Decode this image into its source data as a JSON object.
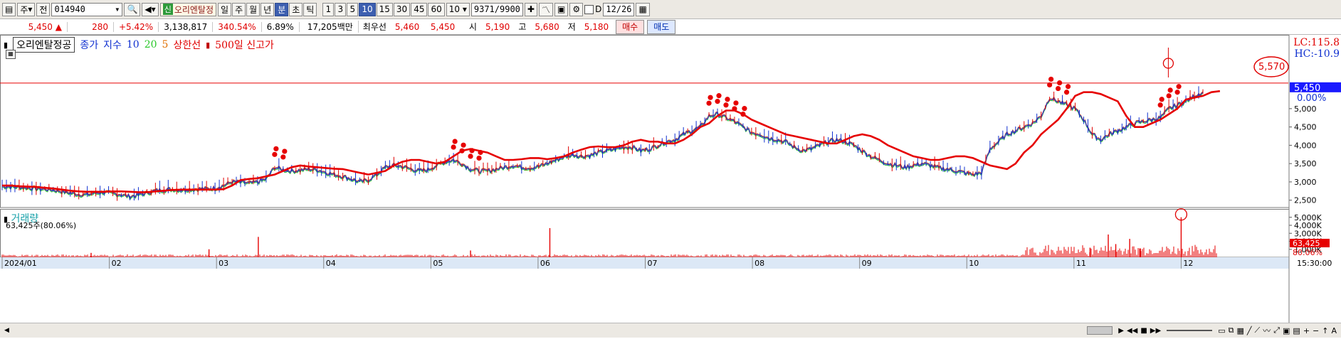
{
  "toolbar": {
    "market_select": "주",
    "prev_label": "전",
    "code": "014940",
    "sin_badge": "신",
    "stock_name": "오리엔탈정",
    "periods": [
      "일",
      "주",
      "월",
      "년",
      "분",
      "초",
      "틱"
    ],
    "intervals": [
      "1",
      "3",
      "5",
      "10",
      "15",
      "30",
      "45",
      "60"
    ],
    "selected_period": "분",
    "selected_interval": "10",
    "count_select": "10",
    "bar_count": "9371",
    "bar_total": "/9900",
    "date": "12/26",
    "d_label": "D"
  },
  "quote": {
    "price": "5,450",
    "arrow": "▲",
    "change": "280",
    "change_pct": "+5.42%",
    "volume": "3,138,817",
    "vol_ratio": "340.54%",
    "turnover_pct": "6.89%",
    "amount": "17,205백만",
    "best_label": "최우선",
    "ask": "5,460",
    "bid": "5,450",
    "open_label": "시",
    "open": "5,190",
    "high_label": "고",
    "high": "5,680",
    "low_label": "저",
    "low": "5,180",
    "buy_label": "매수",
    "sell_label": "매도"
  },
  "legend": {
    "name": "오리엔탈정공",
    "close_label": "종가",
    "index_label": "지수",
    "ma10": "10",
    "ma20": "20",
    "ma5": "5",
    "limit_label": "상한선",
    "high500_label": "500일 신고가"
  },
  "lc_text": "LC:115.8",
  "hc_text": "HC:-10.9",
  "volume_panel": {
    "title": "거래량",
    "info": "63,425주(80.06%)",
    "current": "63,425",
    "ratio": "80.06%"
  },
  "time_label": "15:30:00",
  "chart_data": [
    {
      "type": "line",
      "price_axis_ticks": [
        "5,000",
        "4,500",
        "4,000",
        "3,500",
        "3,000",
        "2,500"
      ],
      "ylim": [
        2300,
        6900
      ],
      "current_price_label": "5,450",
      "current_change_label": "0.00%",
      "circled_price": "5,570",
      "x_labels": [
        "2024/01",
        "02",
        "03",
        "04",
        "05",
        "06",
        "07",
        "08",
        "09",
        "10",
        "11",
        "12"
      ],
      "series": [
        {
          "values": [
            2880,
            2870,
            2860,
            2840,
            2820,
            2800,
            2780,
            2740,
            2700,
            2660,
            2650,
            2700,
            2720,
            2680,
            2650,
            2600,
            2640,
            2700,
            2760,
            2780,
            2800,
            2780,
            2800,
            2810,
            2810,
            2830,
            2900,
            3000,
            2990,
            2960,
            3000,
            3080,
            3400,
            3330,
            3300,
            3320,
            3350,
            3330,
            3260,
            3200,
            3150,
            3080,
            3000,
            3050,
            3200,
            3400,
            3450,
            3420,
            3350,
            3300,
            3330,
            3450,
            3550,
            3600,
            3500,
            3350,
            3300,
            3300,
            3350,
            3400,
            3450,
            3400,
            3380,
            3420,
            3500,
            3600,
            3680,
            3750,
            3700,
            3720,
            3800,
            3850,
            3900,
            3950,
            3950,
            3850,
            3900,
            4000,
            4100,
            4150,
            4300,
            4400,
            4500,
            4800,
            4850,
            4750,
            4650,
            4500,
            4350,
            4300,
            4200,
            4150,
            4100,
            3950,
            3850,
            3900,
            4000,
            4100,
            4150,
            4100,
            4000,
            3850,
            3700,
            3600,
            3500,
            3450,
            3400,
            3450,
            3500,
            3450,
            3380,
            3350,
            3300,
            3250,
            3200,
            3250,
            3900,
            4100,
            4300,
            4400,
            4500,
            4600,
            4800,
            5300,
            5200,
            5100,
            5000,
            4700,
            4300,
            4150,
            4300,
            4400,
            4500,
            4600,
            4650,
            4700,
            4750,
            5000,
            5100,
            5200,
            5350,
            5450
          ]
        },
        {
          "name": "상한선",
          "values": [
            2900,
            2900,
            2880,
            2870,
            2860,
            2840,
            2820,
            2790,
            2760,
            2740,
            2730,
            2730,
            2730,
            2740,
            2740,
            2730,
            2720,
            2720,
            2740,
            2760,
            2780,
            2790,
            2790,
            2790,
            2790,
            2790,
            2800,
            2900,
            3050,
            3080,
            3100,
            3150,
            3200,
            3300,
            3400,
            3450,
            3420,
            3400,
            3380,
            3360,
            3350,
            3300,
            3250,
            3200,
            3250,
            3300,
            3450,
            3550,
            3600,
            3600,
            3550,
            3500,
            3550,
            3700,
            3850,
            3900,
            3850,
            3800,
            3700,
            3600,
            3600,
            3620,
            3650,
            3650,
            3620,
            3650,
            3700,
            3800,
            3880,
            3950,
            3970,
            3950,
            3950,
            4000,
            4100,
            4150,
            4100,
            4100,
            4050,
            4050,
            4150,
            4300,
            4500,
            4600,
            4800,
            4950,
            4950,
            4850,
            4700,
            4600,
            4500,
            4400,
            4300,
            4250,
            4200,
            4150,
            4100,
            4050,
            4050,
            4150,
            4250,
            4300,
            4250,
            4150,
            4000,
            3900,
            3800,
            3700,
            3650,
            3600,
            3600,
            3650,
            3700,
            3700,
            3650,
            3550,
            3450,
            3400,
            3350,
            3500,
            3800,
            4000,
            4300,
            4500,
            4700,
            5000,
            5350,
            5450,
            5450,
            5400,
            5300,
            5200,
            4800,
            4500,
            4500,
            4600,
            4700,
            4850,
            5000,
            5250,
            5300,
            5350,
            5450,
            5480
          ]
        }
      ]
    },
    {
      "type": "bar",
      "y_axis_ticks": [
        "5,000K",
        "4,000K",
        "3,000K",
        "2,000K",
        "1,000K"
      ],
      "ylim": [
        0,
        5600
      ],
      "spikes": [
        {
          "month": 1.83,
          "value": 550
        },
        {
          "month": 2.93,
          "value": 1000
        },
        {
          "month": 3.39,
          "value": 2550
        },
        {
          "month": 5.37,
          "value": 850
        },
        {
          "month": 6.11,
          "value": 3650
        },
        {
          "month": 11.15,
          "value": 1200
        },
        {
          "month": 11.32,
          "value": 2850
        },
        {
          "month": 11.39,
          "value": 1650
        },
        {
          "month": 11.52,
          "value": 2300
        },
        {
          "month": 11.62,
          "value": 1100
        },
        {
          "month": 12.0,
          "value": 5000
        }
      ]
    }
  ]
}
